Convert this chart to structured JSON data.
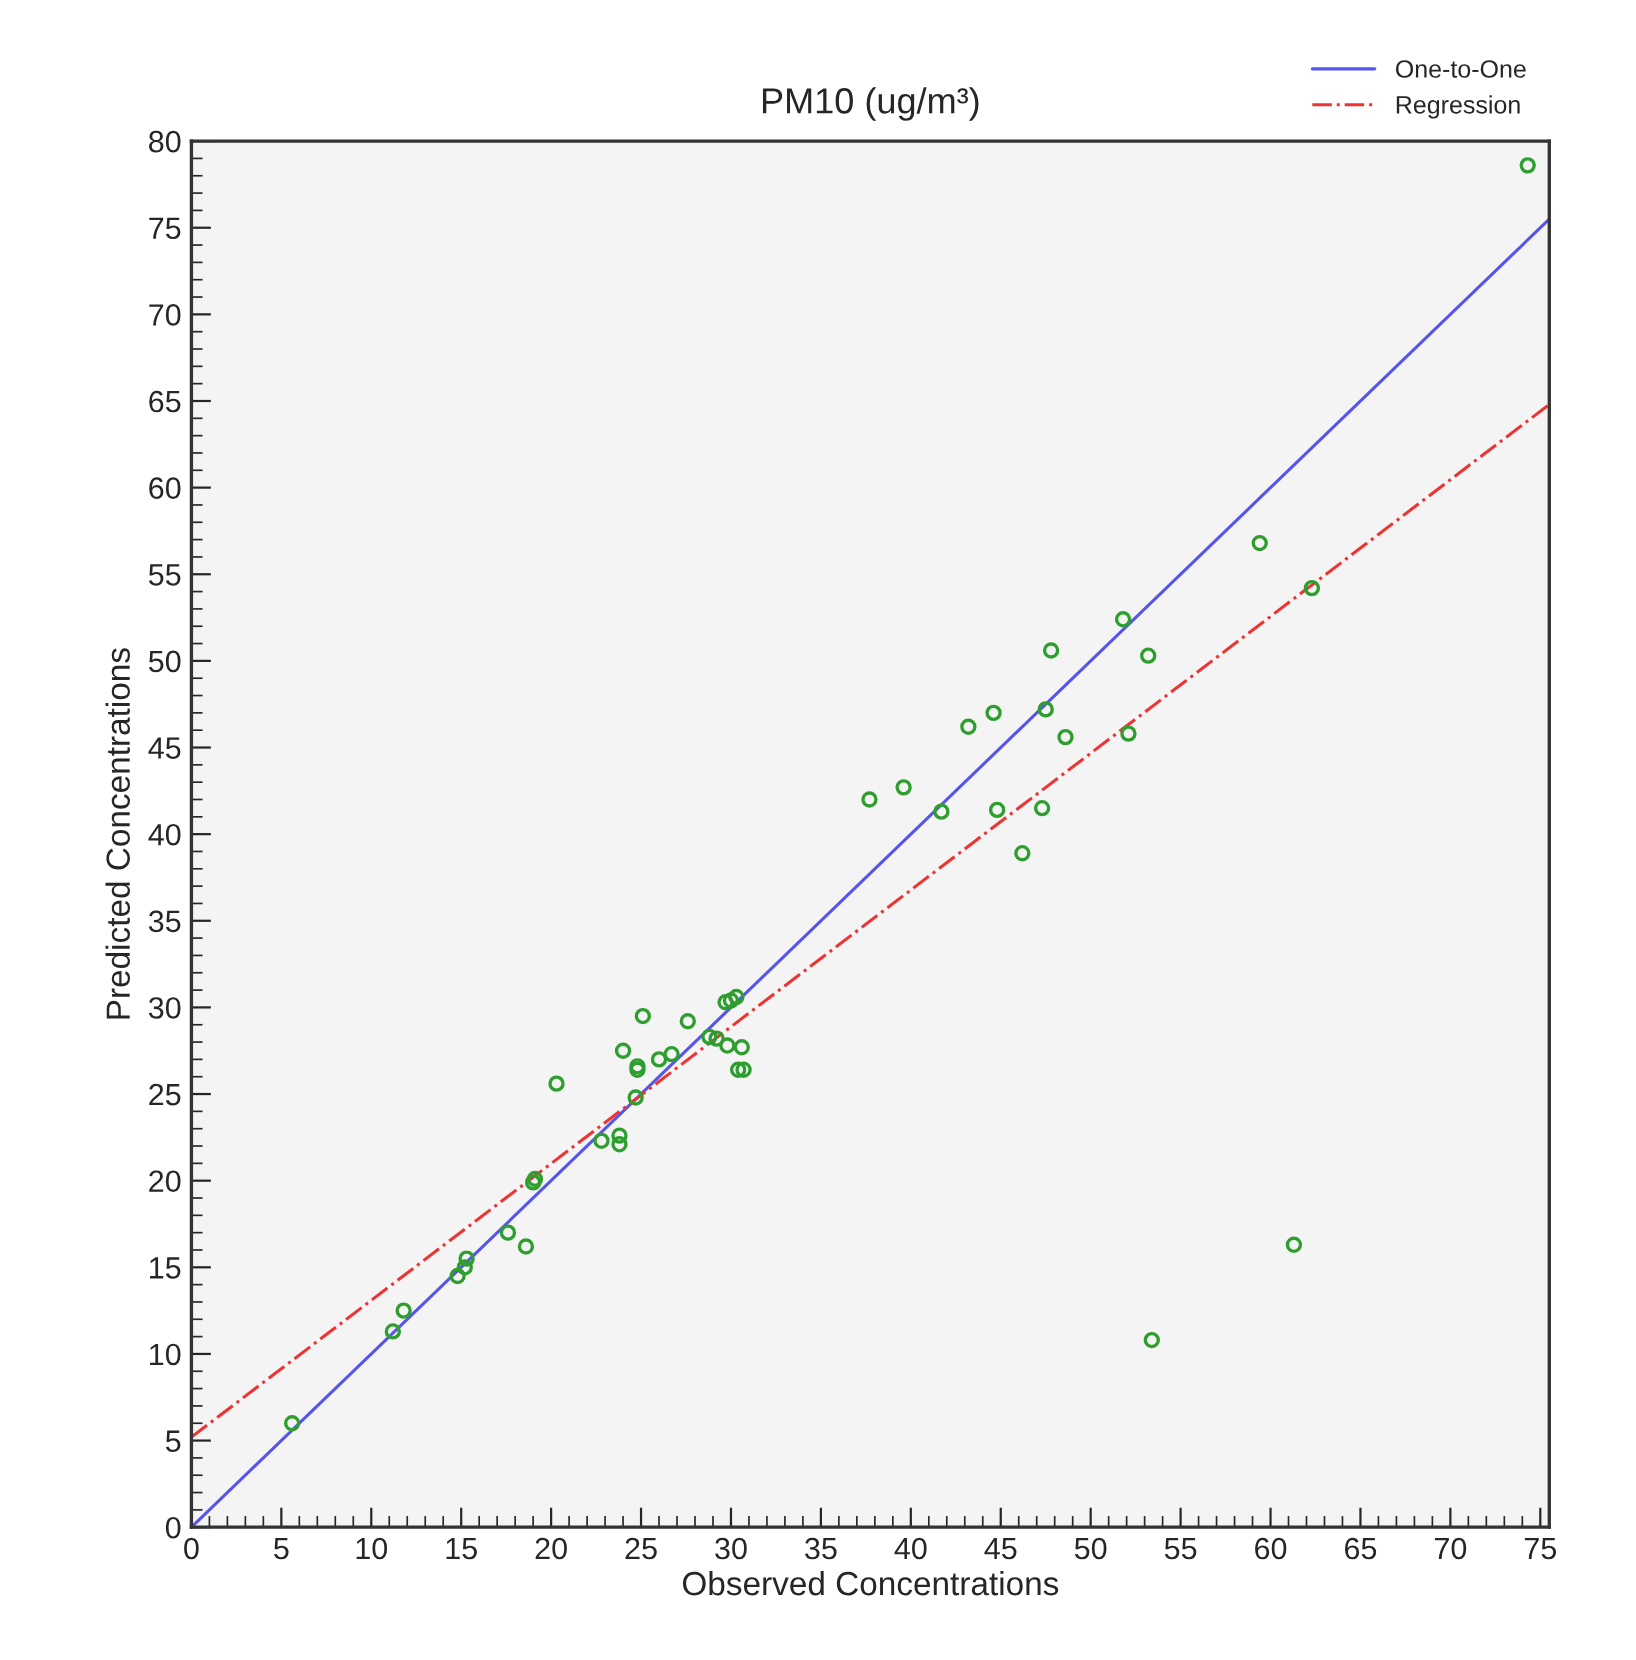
{
  "chart_data": {
    "type": "scatter",
    "title": "PM10 (ug/m³)",
    "xlabel": "Observed Concentrations",
    "ylabel": "Predicted Concentrations",
    "xlim": [
      0,
      75.5
    ],
    "ylim": [
      0,
      80
    ],
    "xticks": [
      0,
      5,
      10,
      15,
      20,
      25,
      30,
      35,
      40,
      45,
      50,
      55,
      60,
      65,
      70,
      75
    ],
    "yticks": [
      0,
      5,
      10,
      15,
      20,
      25,
      30,
      35,
      40,
      45,
      50,
      55,
      60,
      65,
      70,
      75,
      80
    ],
    "grid": false,
    "legend": "top right",
    "series": [
      {
        "color": "#2e9e2e",
        "marker": "circle",
        "x": [
          5.6,
          11.2,
          11.8,
          14.8,
          15.2,
          15.3,
          17.6,
          18.6,
          19.0,
          19.1,
          20.3,
          22.8,
          23.8,
          23.8,
          24.0,
          24.7,
          24.8,
          24.8,
          25.1,
          26.0,
          26.7,
          27.6,
          28.8,
          29.2,
          29.7,
          30.0,
          30.3,
          29.8,
          30.4,
          30.7,
          30.6,
          37.7,
          39.6,
          41.7,
          43.2,
          44.6,
          44.8,
          46.2,
          47.3,
          47.5,
          47.8,
          48.6,
          51.8,
          52.1,
          53.2,
          53.4,
          59.4,
          61.3,
          62.3,
          74.3
        ],
        "values": [
          6.0,
          11.3,
          12.5,
          14.5,
          15.0,
          15.5,
          17.0,
          16.2,
          19.9,
          20.1,
          25.6,
          22.3,
          22.6,
          22.1,
          27.5,
          24.8,
          26.4,
          26.6,
          29.5,
          27.0,
          27.3,
          29.2,
          28.3,
          28.2,
          30.3,
          30.4,
          30.6,
          27.8,
          26.4,
          26.4,
          27.7,
          42.0,
          42.7,
          41.3,
          46.2,
          47.0,
          41.4,
          38.9,
          41.5,
          47.2,
          50.6,
          45.6,
          52.4,
          45.8,
          50.3,
          10.8,
          56.8,
          16.3,
          54.2,
          78.6
        ]
      },
      {
        "type": "line",
        "name": "One-to-One",
        "color": "#5555ee",
        "line_style": "solid",
        "marker": "none",
        "x": [
          0,
          75.5
        ],
        "values": [
          0,
          75.5
        ]
      },
      {
        "type": "line",
        "name": "Regression",
        "color": "#ee3333",
        "line_style": "dashdot",
        "marker": "none",
        "x": [
          0,
          75.5
        ],
        "values": [
          5.2,
          64.8
        ]
      }
    ]
  }
}
